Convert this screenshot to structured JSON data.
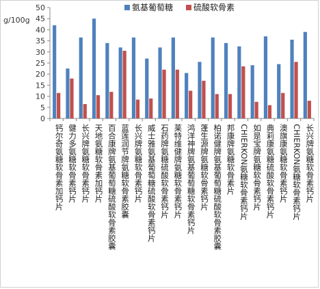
{
  "chart_data": {
    "type": "bar",
    "ylabel": "g/100g",
    "ylim": [
      0,
      50
    ],
    "yticks": [
      0,
      5,
      10,
      15,
      20,
      25,
      30,
      35,
      40,
      45,
      50
    ],
    "legend_position": "top",
    "categories": [
      "钙尔奇氨糖软骨素加钙片",
      "健力多氨糖软骨素钙片",
      "长兴牌氨糖软骨素钙片",
      "天地氨糖软骨素加钙片",
      "百合康牌氨基葡萄糖硫酸软骨素胶囊",
      "蓝莲润节牌氨糖软骨素胶囊",
      "长兴牌氨糖软骨素钙片",
      "威士雅氨基葡萄糖硫酸软骨素钙片",
      "石药牌氨糖硫酸软骨素钙片",
      "莱特维健牌氨糖软骨素钙片",
      "鸿洋神牌氨基葡萄糖软骨素钙片",
      "蓬生源牌氨糖软骨素钙片",
      "柏诺健牌氨基葡萄糖硫酸软骨素胶囊",
      "邦康牌氨糖软骨素片",
      "CHIERKON氨糖软骨素钙片",
      "如是宝牌氨糖软骨素钙片",
      "典莉康氨糖硫酸软骨素钙片",
      "澳旗康氨糖软骨素钙片",
      "CHIERKON氨糖软骨素钙片",
      "长兴牌氨糖软骨素钙片"
    ],
    "series": [
      {
        "name": "氨基葡萄糖",
        "color": "#4f81bd",
        "values": [
          42,
          22.5,
          36.5,
          45,
          34,
          32,
          36.5,
          27,
          32,
          36.5,
          20.5,
          25.5,
          36.5,
          34,
          32.5,
          24,
          37,
          24.5,
          35.5,
          39
        ]
      },
      {
        "name": "硫酸软骨素",
        "color": "#c0504d",
        "values": [
          11.5,
          18,
          6.5,
          10.5,
          12,
          30.5,
          8.5,
          9,
          22,
          22,
          12.5,
          17,
          11,
          11,
          23.5,
          7.5,
          6,
          11.5,
          25.5,
          8
        ]
      }
    ]
  }
}
